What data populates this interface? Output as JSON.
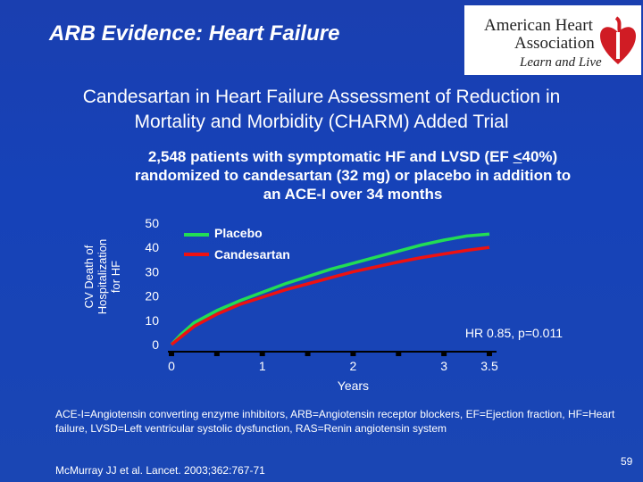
{
  "slide": {
    "title": "ARB Evidence: Heart Failure",
    "subtitle_line1": "Candesartan in Heart Failure Assessment of Reduction in",
    "subtitle_line2": "Mortality and Morbidity (CHARM) Added Trial",
    "desc_line1_pre": "2,548 patients with symptomatic HF and LVSD (EF ",
    "desc_line1_ul": "<",
    "desc_line1_post": "40%)",
    "desc_line2": "randomized to candesartan (32 mg) or placebo in addition to",
    "desc_line3": "an ACE-I over 34 months",
    "footnote": "ACE-I=Angiotensin converting enzyme inhibitors, ARB=Angiotensin receptor blockers, EF=Ejection fraction, HF=Heart failure, LVSD=Left ventricular systolic dysfunction, RAS=Renin angiotensin system",
    "reference": "McMurray JJ et al. Lancet. 2003;362:767-71",
    "page_number": "59"
  },
  "logo": {
    "line1": "American Heart",
    "line2": "Association",
    "tagline": "Learn and Live"
  },
  "chart_data": {
    "type": "line",
    "xlabel": "Years",
    "ylabel_lines": [
      "CV Death of",
      "Hospitalization",
      "for HF"
    ],
    "xlim": [
      0,
      3.5
    ],
    "ylim": [
      0,
      50
    ],
    "x_ticks": [
      0,
      1,
      2,
      3,
      3.5
    ],
    "x_tick_labels": [
      "0",
      "1",
      "2",
      "3",
      "3.5"
    ],
    "y_ticks": [
      0,
      10,
      20,
      30,
      40,
      50
    ],
    "y_tick_labels": [
      "0",
      "10",
      "20",
      "30",
      "40",
      "50"
    ],
    "annotation": "HR 0.85, p=0.011",
    "legend_position": "top-left",
    "series": [
      {
        "name": "Placebo",
        "color": "#22dd55",
        "x": [
          0,
          0.1,
          0.25,
          0.5,
          0.75,
          1.0,
          1.25,
          1.5,
          1.75,
          2.0,
          2.25,
          2.5,
          2.75,
          3.0,
          3.25,
          3.5
        ],
        "y": [
          0,
          4,
          9,
          14,
          18,
          21.5,
          25,
          28,
          31,
          33.5,
          36,
          38.5,
          41,
          43,
          44.7,
          45.5
        ]
      },
      {
        "name": "Candesartan",
        "color": "#ee1111",
        "x": [
          0,
          0.1,
          0.25,
          0.5,
          0.75,
          1.0,
          1.25,
          1.5,
          1.75,
          2.0,
          2.25,
          2.5,
          2.75,
          3.0,
          3.25,
          3.5
        ],
        "y": [
          0,
          3,
          7.5,
          12.5,
          16.5,
          19.5,
          22.5,
          25,
          27.5,
          30,
          32,
          34,
          35.8,
          37.3,
          38.8,
          40
        ]
      }
    ]
  }
}
